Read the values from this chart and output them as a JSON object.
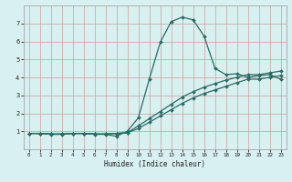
{
  "title": "",
  "xlabel": "Humidex (Indice chaleur)",
  "bg_color": "#d8f0f0",
  "grid_color": "#c8a0a0",
  "line_color": "#2a6b65",
  "xlim": [
    -0.5,
    23.5
  ],
  "ylim": [
    0,
    8
  ],
  "xticks": [
    0,
    1,
    2,
    3,
    4,
    5,
    6,
    7,
    8,
    9,
    10,
    11,
    12,
    13,
    14,
    15,
    16,
    17,
    18,
    19,
    20,
    21,
    22,
    23
  ],
  "yticks": [
    1,
    2,
    3,
    4,
    5,
    6,
    7
  ],
  "line1_x": [
    0,
    1,
    2,
    3,
    4,
    5,
    6,
    7,
    8,
    9,
    10,
    11,
    12,
    13,
    14,
    15,
    16,
    17,
    18,
    19,
    20,
    21,
    22,
    23
  ],
  "line1_y": [
    0.88,
    0.88,
    0.83,
    0.83,
    0.88,
    0.88,
    0.83,
    0.83,
    0.72,
    1.0,
    1.75,
    3.9,
    5.95,
    7.1,
    7.35,
    7.2,
    6.3,
    4.5,
    4.15,
    4.2,
    4.0,
    4.1,
    4.15,
    3.9
  ],
  "line2_x": [
    0,
    1,
    2,
    3,
    4,
    5,
    6,
    7,
    8,
    9,
    10,
    11,
    12,
    13,
    14,
    15,
    16,
    17,
    18,
    19,
    20,
    21,
    22,
    23
  ],
  "line2_y": [
    0.88,
    0.88,
    0.85,
    0.85,
    0.88,
    0.88,
    0.85,
    0.85,
    0.88,
    0.92,
    1.3,
    1.7,
    2.1,
    2.5,
    2.9,
    3.2,
    3.45,
    3.65,
    3.85,
    4.0,
    4.15,
    4.15,
    4.25,
    4.35
  ],
  "line3_x": [
    0,
    1,
    2,
    3,
    4,
    5,
    6,
    7,
    8,
    9,
    10,
    11,
    12,
    13,
    14,
    15,
    16,
    17,
    18,
    19,
    20,
    21,
    22,
    23
  ],
  "line3_y": [
    0.88,
    0.88,
    0.85,
    0.85,
    0.88,
    0.88,
    0.85,
    0.85,
    0.88,
    0.92,
    1.15,
    1.5,
    1.85,
    2.2,
    2.55,
    2.85,
    3.1,
    3.3,
    3.5,
    3.7,
    3.9,
    3.9,
    4.0,
    4.1
  ]
}
